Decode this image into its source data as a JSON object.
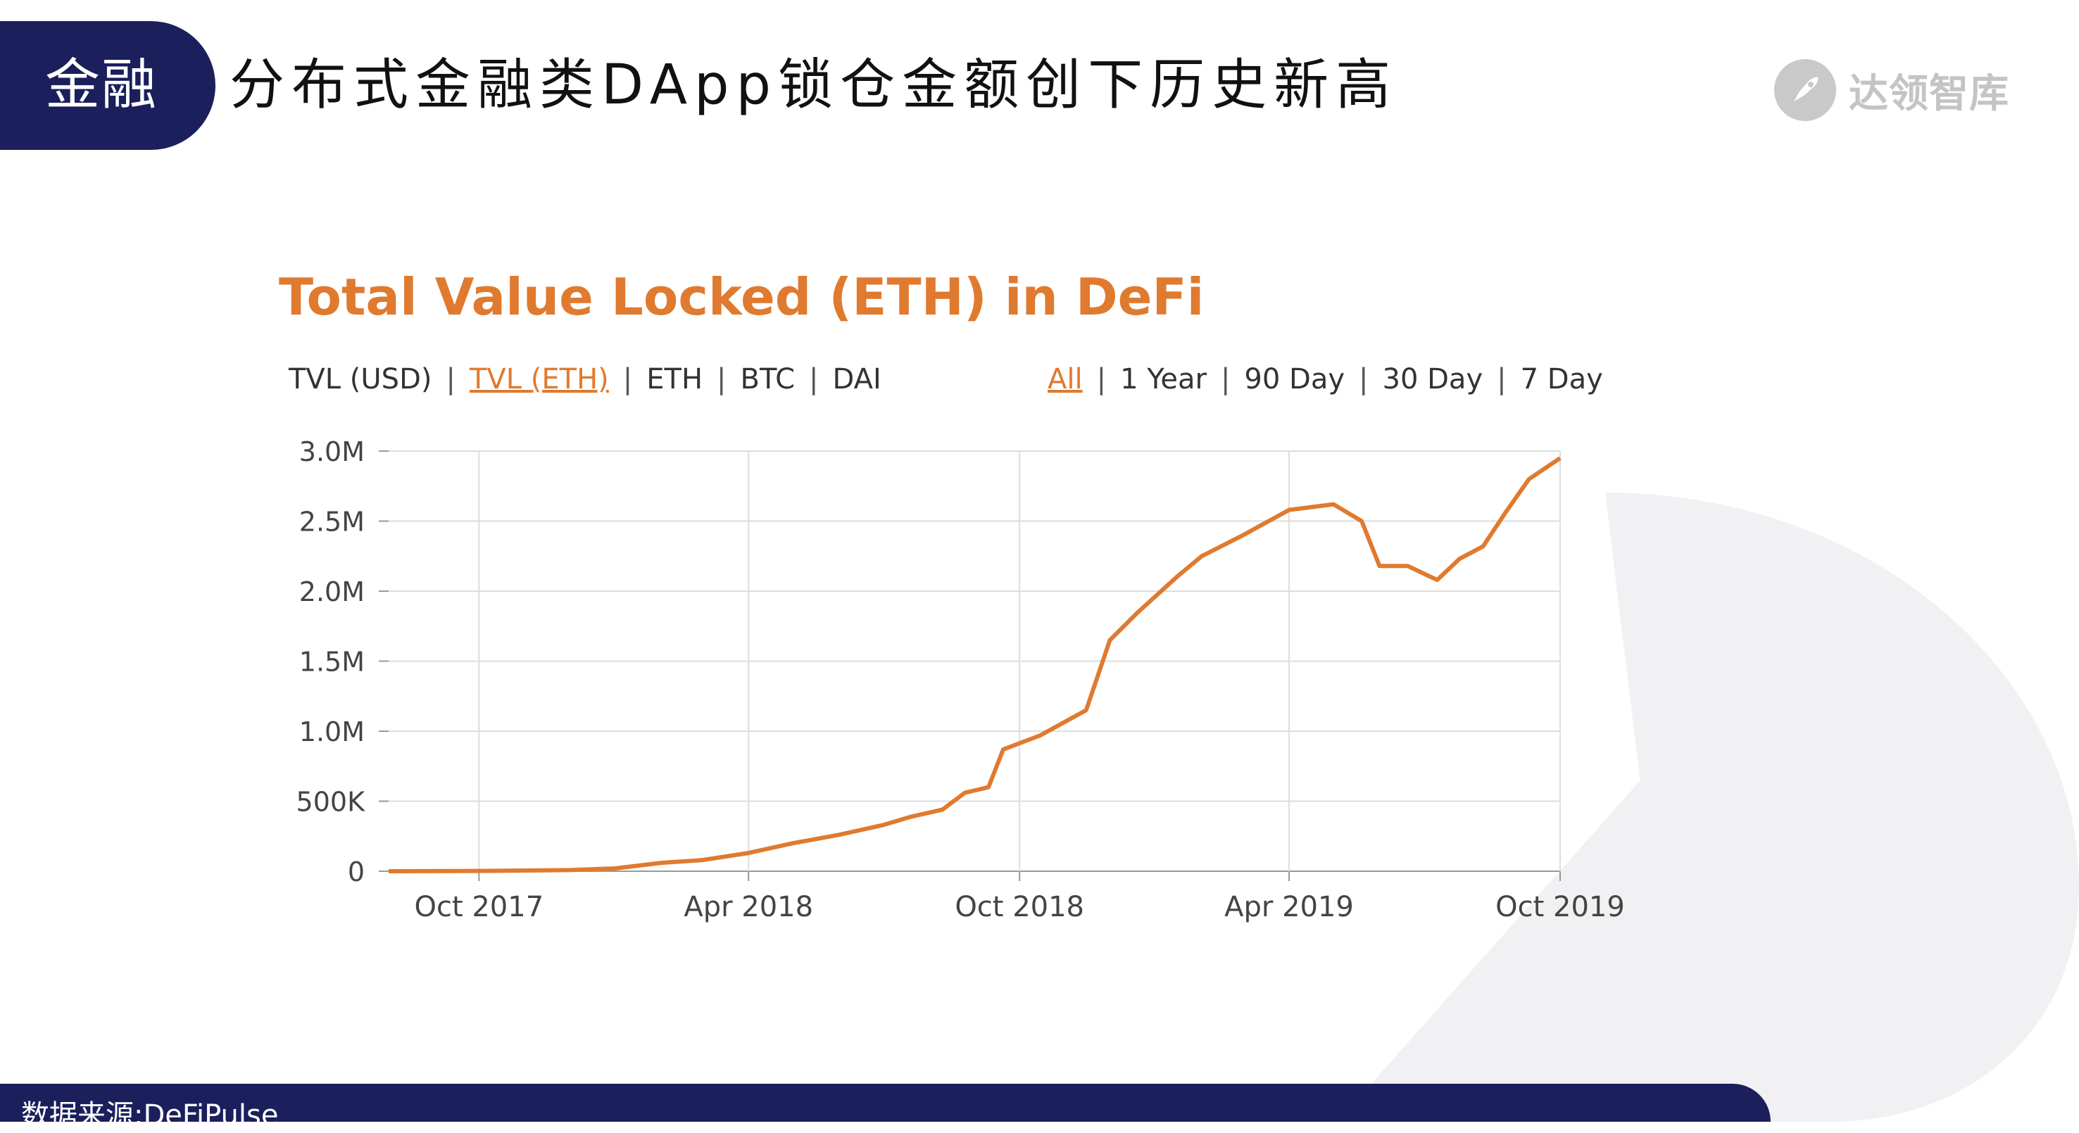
{
  "header": {
    "tag": "金融",
    "title": "分布式金融类DApp锁仓金额创下历史新高"
  },
  "logo": {
    "text": "达领智库",
    "icon": "rocket-icon"
  },
  "colors": {
    "accent_navy": "#1b1f5c",
    "chart_orange": "#e07a2f"
  },
  "controls": {
    "currency_options": [
      "TVL (USD)",
      "TVL (ETH)",
      "ETH",
      "BTC",
      "DAI"
    ],
    "currency_selected": "TVL (ETH)",
    "range_options": [
      "All",
      "1 Year",
      "90 Day",
      "30 Day",
      "7 Day"
    ],
    "range_selected": "All"
  },
  "chart_data": {
    "type": "line",
    "title": "Total Value Locked (ETH) in DeFi",
    "xlabel": "",
    "ylabel": "",
    "grid": true,
    "x_ticks": [
      "Oct 2017",
      "Apr 2018",
      "Oct 2018",
      "Apr 2019",
      "Oct 2019"
    ],
    "y_ticks": [
      "0",
      "500K",
      "1.0M",
      "1.5M",
      "2.0M",
      "2.5M",
      "3.0M"
    ],
    "y_tick_values": [
      0,
      500000,
      1000000,
      1500000,
      2000000,
      2500000,
      3000000
    ],
    "xlim": [
      "2017-08-01",
      "2019-10-01"
    ],
    "ylim": [
      0,
      3000000
    ],
    "series": [
      {
        "color": "#e07a2f",
        "points": [
          [
            "2017-08-01",
            0
          ],
          [
            "2017-10-01",
            2000
          ],
          [
            "2017-12-01",
            8000
          ],
          [
            "2018-01-01",
            20000
          ],
          [
            "2018-02-01",
            60000
          ],
          [
            "2018-03-01",
            80000
          ],
          [
            "2018-04-01",
            130000
          ],
          [
            "2018-05-01",
            200000
          ],
          [
            "2018-06-01",
            260000
          ],
          [
            "2018-07-01",
            330000
          ],
          [
            "2018-07-20",
            390000
          ],
          [
            "2018-08-10",
            440000
          ],
          [
            "2018-08-25",
            560000
          ],
          [
            "2018-09-10",
            600000
          ],
          [
            "2018-09-20",
            870000
          ],
          [
            "2018-10-15",
            970000
          ],
          [
            "2018-11-15",
            1150000
          ],
          [
            "2018-12-01",
            1650000
          ],
          [
            "2018-12-20",
            1850000
          ],
          [
            "2019-01-15",
            2100000
          ],
          [
            "2019-02-01",
            2250000
          ],
          [
            "2019-03-01",
            2400000
          ],
          [
            "2019-04-01",
            2580000
          ],
          [
            "2019-05-01",
            2620000
          ],
          [
            "2019-05-20",
            2500000
          ],
          [
            "2019-06-01",
            2180000
          ],
          [
            "2019-06-20",
            2180000
          ],
          [
            "2019-07-10",
            2080000
          ],
          [
            "2019-07-25",
            2230000
          ],
          [
            "2019-08-10",
            2320000
          ],
          [
            "2019-08-25",
            2560000
          ],
          [
            "2019-09-10",
            2800000
          ],
          [
            "2019-10-01",
            2950000
          ]
        ]
      }
    ]
  },
  "footer": {
    "source": "数据来源:DeFiPulse"
  }
}
